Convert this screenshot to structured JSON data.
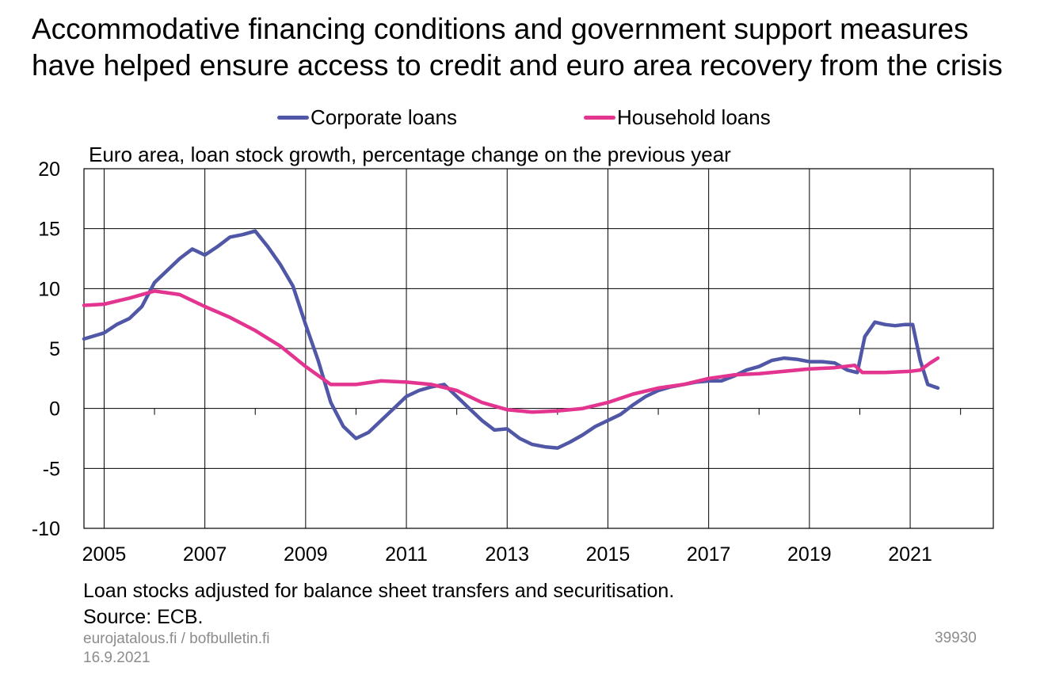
{
  "title": "Accommodative financing conditions and government support measures have helped ensure access to credit and euro area recovery from the crisis",
  "subtitle": "Euro area, loan stock growth, percentage change on the previous year",
  "note_line1": "Loan stocks adjusted for balance sheet transfers and securitisation.",
  "note_line2": "Source: ECB.",
  "footer": {
    "site": "eurojatalous.fi / bofbulletin.fi",
    "date": "16.9.2021",
    "code": "39930"
  },
  "colors": {
    "corporate": "#4f57a6",
    "household": "#e3348f",
    "grid": "#000000"
  },
  "chart_data": {
    "type": "line",
    "title": "Accommodative financing conditions and government support measures have helped ensure access to credit and euro area recovery from the crisis",
    "subtitle": "Euro area, loan stock growth, percentage change on the previous year",
    "ylim": [
      -10,
      20
    ],
    "yticks": [
      "20",
      "15",
      "10",
      "5",
      "0",
      "-5",
      "-10"
    ],
    "xlim": [
      2004.6,
      2022.65
    ],
    "xticks": [
      "2005",
      "2007",
      "2009",
      "2011",
      "2013",
      "2015",
      "2017",
      "2019",
      "2021"
    ],
    "grid": true,
    "legend_position": "top",
    "series": [
      {
        "name": "Corporate loans",
        "points": [
          [
            2004.6,
            5.8
          ],
          [
            2005.0,
            6.3
          ],
          [
            2005.25,
            7.0
          ],
          [
            2005.5,
            7.5
          ],
          [
            2005.75,
            8.5
          ],
          [
            2006.0,
            10.5
          ],
          [
            2006.25,
            11.5
          ],
          [
            2006.5,
            12.5
          ],
          [
            2006.75,
            13.3
          ],
          [
            2007.0,
            12.8
          ],
          [
            2007.25,
            13.5
          ],
          [
            2007.5,
            14.3
          ],
          [
            2007.75,
            14.5
          ],
          [
            2008.0,
            14.8
          ],
          [
            2008.25,
            13.5
          ],
          [
            2008.5,
            12.0
          ],
          [
            2008.75,
            10.2
          ],
          [
            2009.0,
            7.0
          ],
          [
            2009.25,
            4.0
          ],
          [
            2009.5,
            0.5
          ],
          [
            2009.75,
            -1.5
          ],
          [
            2010.0,
            -2.5
          ],
          [
            2010.25,
            -2.0
          ],
          [
            2010.5,
            -1.0
          ],
          [
            2010.75,
            0.0
          ],
          [
            2011.0,
            1.0
          ],
          [
            2011.25,
            1.5
          ],
          [
            2011.5,
            1.8
          ],
          [
            2011.75,
            2.0
          ],
          [
            2012.0,
            1.0
          ],
          [
            2012.25,
            0.0
          ],
          [
            2012.5,
            -1.0
          ],
          [
            2012.75,
            -1.8
          ],
          [
            2013.0,
            -1.7
          ],
          [
            2013.25,
            -2.5
          ],
          [
            2013.5,
            -3.0
          ],
          [
            2013.75,
            -3.2
          ],
          [
            2014.0,
            -3.3
          ],
          [
            2014.25,
            -2.8
          ],
          [
            2014.5,
            -2.2
          ],
          [
            2014.75,
            -1.5
          ],
          [
            2015.0,
            -1.0
          ],
          [
            2015.25,
            -0.5
          ],
          [
            2015.5,
            0.3
          ],
          [
            2015.75,
            1.0
          ],
          [
            2016.0,
            1.5
          ],
          [
            2016.25,
            1.8
          ],
          [
            2016.5,
            2.0
          ],
          [
            2016.75,
            2.2
          ],
          [
            2017.0,
            2.3
          ],
          [
            2017.25,
            2.3
          ],
          [
            2017.5,
            2.7
          ],
          [
            2017.75,
            3.2
          ],
          [
            2018.0,
            3.5
          ],
          [
            2018.25,
            4.0
          ],
          [
            2018.5,
            4.2
          ],
          [
            2018.75,
            4.1
          ],
          [
            2019.0,
            3.9
          ],
          [
            2019.25,
            3.9
          ],
          [
            2019.5,
            3.8
          ],
          [
            2019.75,
            3.2
          ],
          [
            2019.95,
            3.0
          ],
          [
            2020.1,
            6.0
          ],
          [
            2020.3,
            7.2
          ],
          [
            2020.5,
            7.0
          ],
          [
            2020.7,
            6.9
          ],
          [
            2020.9,
            7.0
          ],
          [
            2021.05,
            7.0
          ],
          [
            2021.2,
            4.0
          ],
          [
            2021.35,
            2.0
          ],
          [
            2021.55,
            1.7
          ]
        ]
      },
      {
        "name": "Household loans",
        "points": [
          [
            2004.6,
            8.6
          ],
          [
            2005.0,
            8.7
          ],
          [
            2005.5,
            9.2
          ],
          [
            2006.0,
            9.8
          ],
          [
            2006.5,
            9.5
          ],
          [
            2007.0,
            8.5
          ],
          [
            2007.5,
            7.6
          ],
          [
            2008.0,
            6.5
          ],
          [
            2008.5,
            5.2
          ],
          [
            2009.0,
            3.5
          ],
          [
            2009.5,
            2.0
          ],
          [
            2010.0,
            2.0
          ],
          [
            2010.5,
            2.3
          ],
          [
            2011.0,
            2.2
          ],
          [
            2011.5,
            2.0
          ],
          [
            2012.0,
            1.5
          ],
          [
            2012.5,
            0.5
          ],
          [
            2013.0,
            -0.1
          ],
          [
            2013.5,
            -0.3
          ],
          [
            2014.0,
            -0.2
          ],
          [
            2014.5,
            0.0
          ],
          [
            2015.0,
            0.5
          ],
          [
            2015.5,
            1.2
          ],
          [
            2016.0,
            1.7
          ],
          [
            2016.5,
            2.0
          ],
          [
            2017.0,
            2.5
          ],
          [
            2017.5,
            2.8
          ],
          [
            2018.0,
            2.9
          ],
          [
            2018.5,
            3.1
          ],
          [
            2019.0,
            3.3
          ],
          [
            2019.5,
            3.4
          ],
          [
            2019.9,
            3.6
          ],
          [
            2020.05,
            3.0
          ],
          [
            2020.5,
            3.0
          ],
          [
            2021.0,
            3.1
          ],
          [
            2021.2,
            3.2
          ],
          [
            2021.4,
            3.8
          ],
          [
            2021.55,
            4.2
          ]
        ]
      }
    ]
  }
}
